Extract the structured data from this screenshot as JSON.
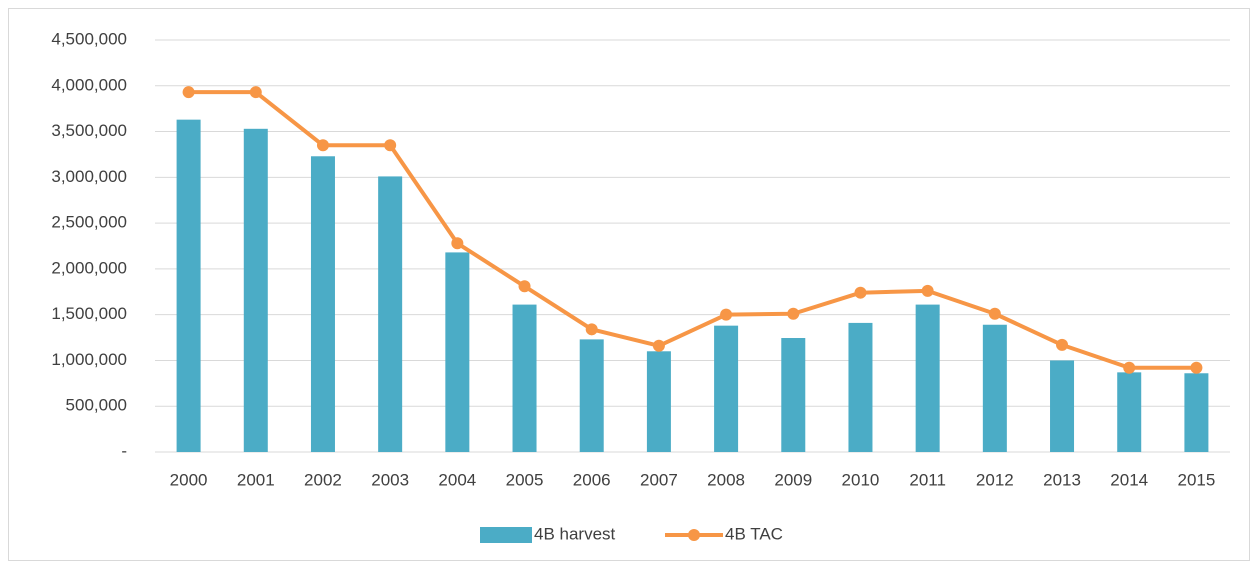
{
  "chart_data": {
    "type": "bar-line",
    "categories": [
      "2000",
      "2001",
      "2002",
      "2003",
      "2004",
      "2005",
      "2006",
      "2007",
      "2008",
      "2009",
      "2010",
      "2011",
      "2012",
      "2013",
      "2014",
      "2015"
    ],
    "series": [
      {
        "name": "4B harvest",
        "type": "bar",
        "color": "#4bacc6",
        "values": [
          3630000,
          3530000,
          3230000,
          3010000,
          2180000,
          1610000,
          1230000,
          1100000,
          1380000,
          1245000,
          1410000,
          1610000,
          1390000,
          1000000,
          870000,
          860000
        ]
      },
      {
        "name": "4B TAC",
        "type": "line",
        "color": "#f79646",
        "values": [
          3930000,
          3930000,
          3350000,
          3350000,
          2280000,
          1810000,
          1340000,
          1160000,
          1500000,
          1510000,
          1740000,
          1760000,
          1510000,
          1170000,
          920000,
          920000
        ]
      }
    ],
    "ylim": [
      0,
      4500000
    ],
    "yticks": [
      {
        "value": 0,
        "label": "-"
      },
      {
        "value": 500000,
        "label": "500,000"
      },
      {
        "value": 1000000,
        "label": "1,000,000"
      },
      {
        "value": 1500000,
        "label": "1,500,000"
      },
      {
        "value": 2000000,
        "label": "2,000,000"
      },
      {
        "value": 2500000,
        "label": "2,500,000"
      },
      {
        "value": 3000000,
        "label": "3,000,000"
      },
      {
        "value": 3500000,
        "label": "3,500,000"
      },
      {
        "value": 4000000,
        "label": "4,000,000"
      },
      {
        "value": 4500000,
        "label": "4,500,000"
      }
    ],
    "grid": true,
    "legend": "bottom"
  }
}
